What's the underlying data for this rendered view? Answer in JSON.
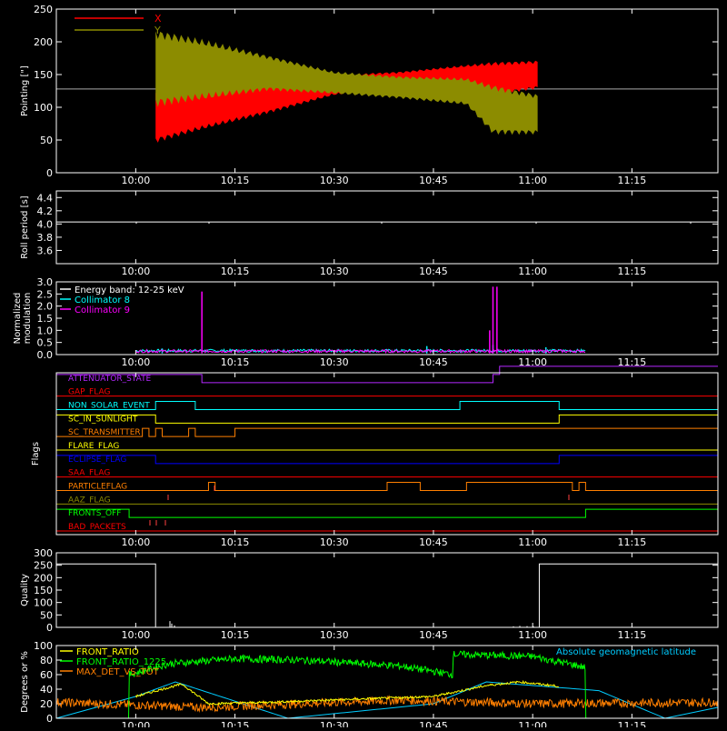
{
  "time_axis": {
    "ticks": [
      "10:00",
      "10:15",
      "10:30",
      "10:45",
      "11:00",
      "11:15"
    ],
    "range_minutes": [
      588,
      688
    ]
  },
  "colors": {
    "axis": "#ffffff",
    "red": "#ff0000",
    "olive": "#8c8c00",
    "cyan": "#00ffff",
    "magenta": "#ff00ff",
    "yellow": "#ffff00",
    "green": "#00ff00",
    "orange": "#ff7f00",
    "blue": "#0000ff",
    "purple": "#b428ff",
    "sky": "#00ccff"
  },
  "chart_data": [
    {
      "type": "area",
      "id": "pointing",
      "ylabel": "Pointing [\"]",
      "ylim": [
        0,
        250
      ],
      "yticks": [
        "0",
        "50",
        "100",
        "150",
        "200",
        "250"
      ],
      "reference_level": 128,
      "legend": [
        {
          "name": "X",
          "color": "red"
        },
        {
          "name": "Y",
          "color": "olive"
        }
      ],
      "series": [
        {
          "name": "X",
          "time": [
            "10:03",
            "10:10",
            "10:20",
            "10:30",
            "10:40",
            "10:50",
            "10:54",
            "11:01"
          ],
          "low": [
            45,
            65,
            90,
            118,
            128,
            135,
            118,
            128
          ],
          "high": [
            125,
            125,
            140,
            150,
            155,
            165,
            170,
            172
          ]
        },
        {
          "name": "Y",
          "time": [
            "10:03",
            "10:10",
            "10:20",
            "10:30",
            "10:40",
            "10:50",
            "10:54",
            "11:01"
          ],
          "low": [
            100,
            110,
            125,
            120,
            113,
            103,
            58,
            58
          ],
          "high": [
            220,
            205,
            180,
            155,
            148,
            145,
            135,
            120
          ]
        }
      ]
    },
    {
      "type": "line",
      "id": "roll",
      "ylabel": "Roll period [s]",
      "ylim": [
        3.4,
        4.5
      ],
      "yticks": [
        "3.6",
        "3.8",
        "4.0",
        "4.2",
        "4.4"
      ],
      "series": [
        {
          "name": "",
          "value": 4.03
        }
      ]
    },
    {
      "type": "line",
      "id": "modulation",
      "ylabel_lines": [
        "Normalized",
        "modulation"
      ],
      "ylim": [
        0,
        3.0
      ],
      "yticks": [
        "0.0",
        "0.5",
        "1.0",
        "1.5",
        "2.0",
        "2.5",
        "3.0"
      ],
      "legend": [
        {
          "name": "Energy band: 12-25 keV",
          "color": "axis"
        },
        {
          "name": "Collimator 8",
          "color": "cyan"
        },
        {
          "name": "Collimator 9",
          "color": "magenta"
        }
      ],
      "series": [
        {
          "name": "Collimator 8",
          "time_range": [
            "10:00",
            "11:08"
          ],
          "baseline": 0.1,
          "spikes": [
            {
              "time": "10:04",
              "value": 0.25
            },
            {
              "time": "10:44",
              "value": 0.35
            },
            {
              "time": "10:54",
              "value": 0.4
            },
            {
              "time": "11:02",
              "value": 0.3
            }
          ]
        },
        {
          "name": "Collimator 9",
          "time_range": [
            "10:00",
            "11:08"
          ],
          "baseline": 0.08,
          "spikes": [
            {
              "time": "10:10",
              "value": 2.6
            },
            {
              "time": "10:54",
              "value": 2.8
            },
            {
              "time": "10:54.6",
              "value": 2.8
            },
            {
              "time": "10:53.5",
              "value": 1.0
            }
          ]
        }
      ]
    },
    {
      "type": "table",
      "id": "flags",
      "ylabel": "Flags",
      "rows": [
        {
          "label": "ATTENUATOR_STATE",
          "color": "purple",
          "changes": [
            [
              "start",
              1
            ],
            [
              "10:10",
              0
            ],
            [
              "10:54",
              1
            ],
            [
              "10:55",
              2
            ]
          ]
        },
        {
          "label": "GAP_FLAG",
          "color": "red",
          "changes": [
            [
              "start",
              0
            ]
          ]
        },
        {
          "label": "NON_SOLAR_EVENT",
          "color": "cyan",
          "changes": [
            [
              "start",
              0
            ],
            [
              "10:03",
              1
            ],
            [
              "10:09",
              0
            ],
            [
              "10:49",
              1
            ],
            [
              "11:04",
              0
            ]
          ]
        },
        {
          "label": "SC_IN_SUNLIGHT",
          "color": "yellow",
          "changes": [
            [
              "start",
              1
            ],
            [
              "10:03",
              0
            ],
            [
              "11:04",
              1
            ]
          ]
        },
        {
          "label": "SC_TRANSMITTER",
          "color": "orange",
          "changes": [
            [
              "start",
              0
            ],
            [
              "10:01",
              1
            ],
            [
              "10:02",
              0
            ],
            [
              "10:03",
              1
            ],
            [
              "10:04",
              0
            ],
            [
              "10:08",
              1
            ],
            [
              "10:09",
              0
            ],
            [
              "10:15",
              1
            ]
          ]
        },
        {
          "label": "FLARE_FLAG",
          "color": "yellow",
          "changes": [
            [
              "start",
              0
            ]
          ]
        },
        {
          "label": "ECLIPSE_FLAG",
          "color": "blue",
          "changes": [
            [
              "start",
              1
            ],
            [
              "10:03",
              0
            ],
            [
              "11:04",
              1
            ]
          ]
        },
        {
          "label": "SAA_FLAG",
          "color": "red",
          "changes": [
            [
              "start",
              0
            ]
          ]
        },
        {
          "label": "PARTICLEFLAG",
          "color": "orange",
          "changes": [
            [
              "start",
              0
            ],
            [
              "10:11",
              1
            ],
            [
              "10:12",
              0
            ],
            [
              "10:38",
              1
            ],
            [
              "10:43",
              0
            ],
            [
              "10:50",
              1
            ],
            [
              "11:06",
              0
            ],
            [
              "11:07",
              1
            ],
            [
              "11:08",
              0
            ]
          ]
        },
        {
          "label": "AAZ_FLAG",
          "color": "olive",
          "changes": [
            [
              "start",
              0
            ]
          ]
        },
        {
          "label": "FRONTS_OFF",
          "color": "green",
          "changes": [
            [
              "start",
              1
            ],
            [
              "09:59",
              0
            ],
            [
              "11:08",
              1
            ]
          ]
        },
        {
          "label": "BAD_PACKETS",
          "color": "red",
          "changes": [
            [
              "start",
              0
            ]
          ]
        }
      ]
    },
    {
      "type": "line",
      "id": "quality",
      "ylabel": "Quality",
      "ylim": [
        0,
        300
      ],
      "yticks": [
        "0",
        "50",
        "100",
        "150",
        "200",
        "250",
        "300"
      ],
      "series": [
        {
          "name": "",
          "time": [
            "start",
            "10:03",
            "10:03",
            "11:01",
            "11:01",
            "end"
          ],
          "values": [
            255,
            255,
            0,
            0,
            255,
            255
          ]
        }
      ]
    },
    {
      "type": "line",
      "id": "geomag",
      "ylabel": "Degrees or %",
      "ylim": [
        0,
        100
      ],
      "yticks": [
        "0",
        "20",
        "40",
        "60",
        "80",
        "100"
      ],
      "legend": [
        {
          "name": "FRONT_RATIO",
          "color": "yellow"
        },
        {
          "name": "FRONT_RATIO_1225",
          "color": "green"
        },
        {
          "name": "MAX_DET_VS_TOT",
          "color": "orange"
        }
      ],
      "annotation": {
        "text": "Absolute geomagnetic latitude",
        "color": "sky"
      },
      "series": [
        {
          "name": "FRONT_RATIO",
          "time": [
            "10:00",
            "10:04",
            "10:07",
            "10:11",
            "10:20",
            "10:45",
            "10:53",
            "10:58",
            "11:04"
          ],
          "values": [
            30,
            40,
            47,
            20,
            22,
            30,
            45,
            50,
            44
          ]
        },
        {
          "name": "FRONT_RATIO_1225",
          "time": [
            "start",
            "09:59",
            "09:59",
            "10:05",
            "10:15",
            "10:25",
            "10:40",
            "10:48",
            "10:48",
            "11:00",
            "11:08",
            "11:08",
            "end"
          ],
          "values": [
            0,
            0,
            60,
            75,
            82,
            80,
            72,
            60,
            88,
            85,
            70,
            0,
            0
          ]
        },
        {
          "name": "MAX_DET_VS_TOT",
          "time": [
            "start",
            "10:10",
            "10:40",
            "11:00",
            "end"
          ],
          "values": [
            22,
            15,
            25,
            20,
            22
          ]
        },
        {
          "name": "Absolute geomagnetic latitude",
          "time": [
            "start",
            "10:00",
            "10:06",
            "10:23",
            "10:45",
            "10:53",
            "11:10",
            "11:20",
            "end"
          ],
          "values": [
            0,
            30,
            50,
            0,
            20,
            50,
            38,
            0,
            15
          ]
        }
      ]
    }
  ]
}
